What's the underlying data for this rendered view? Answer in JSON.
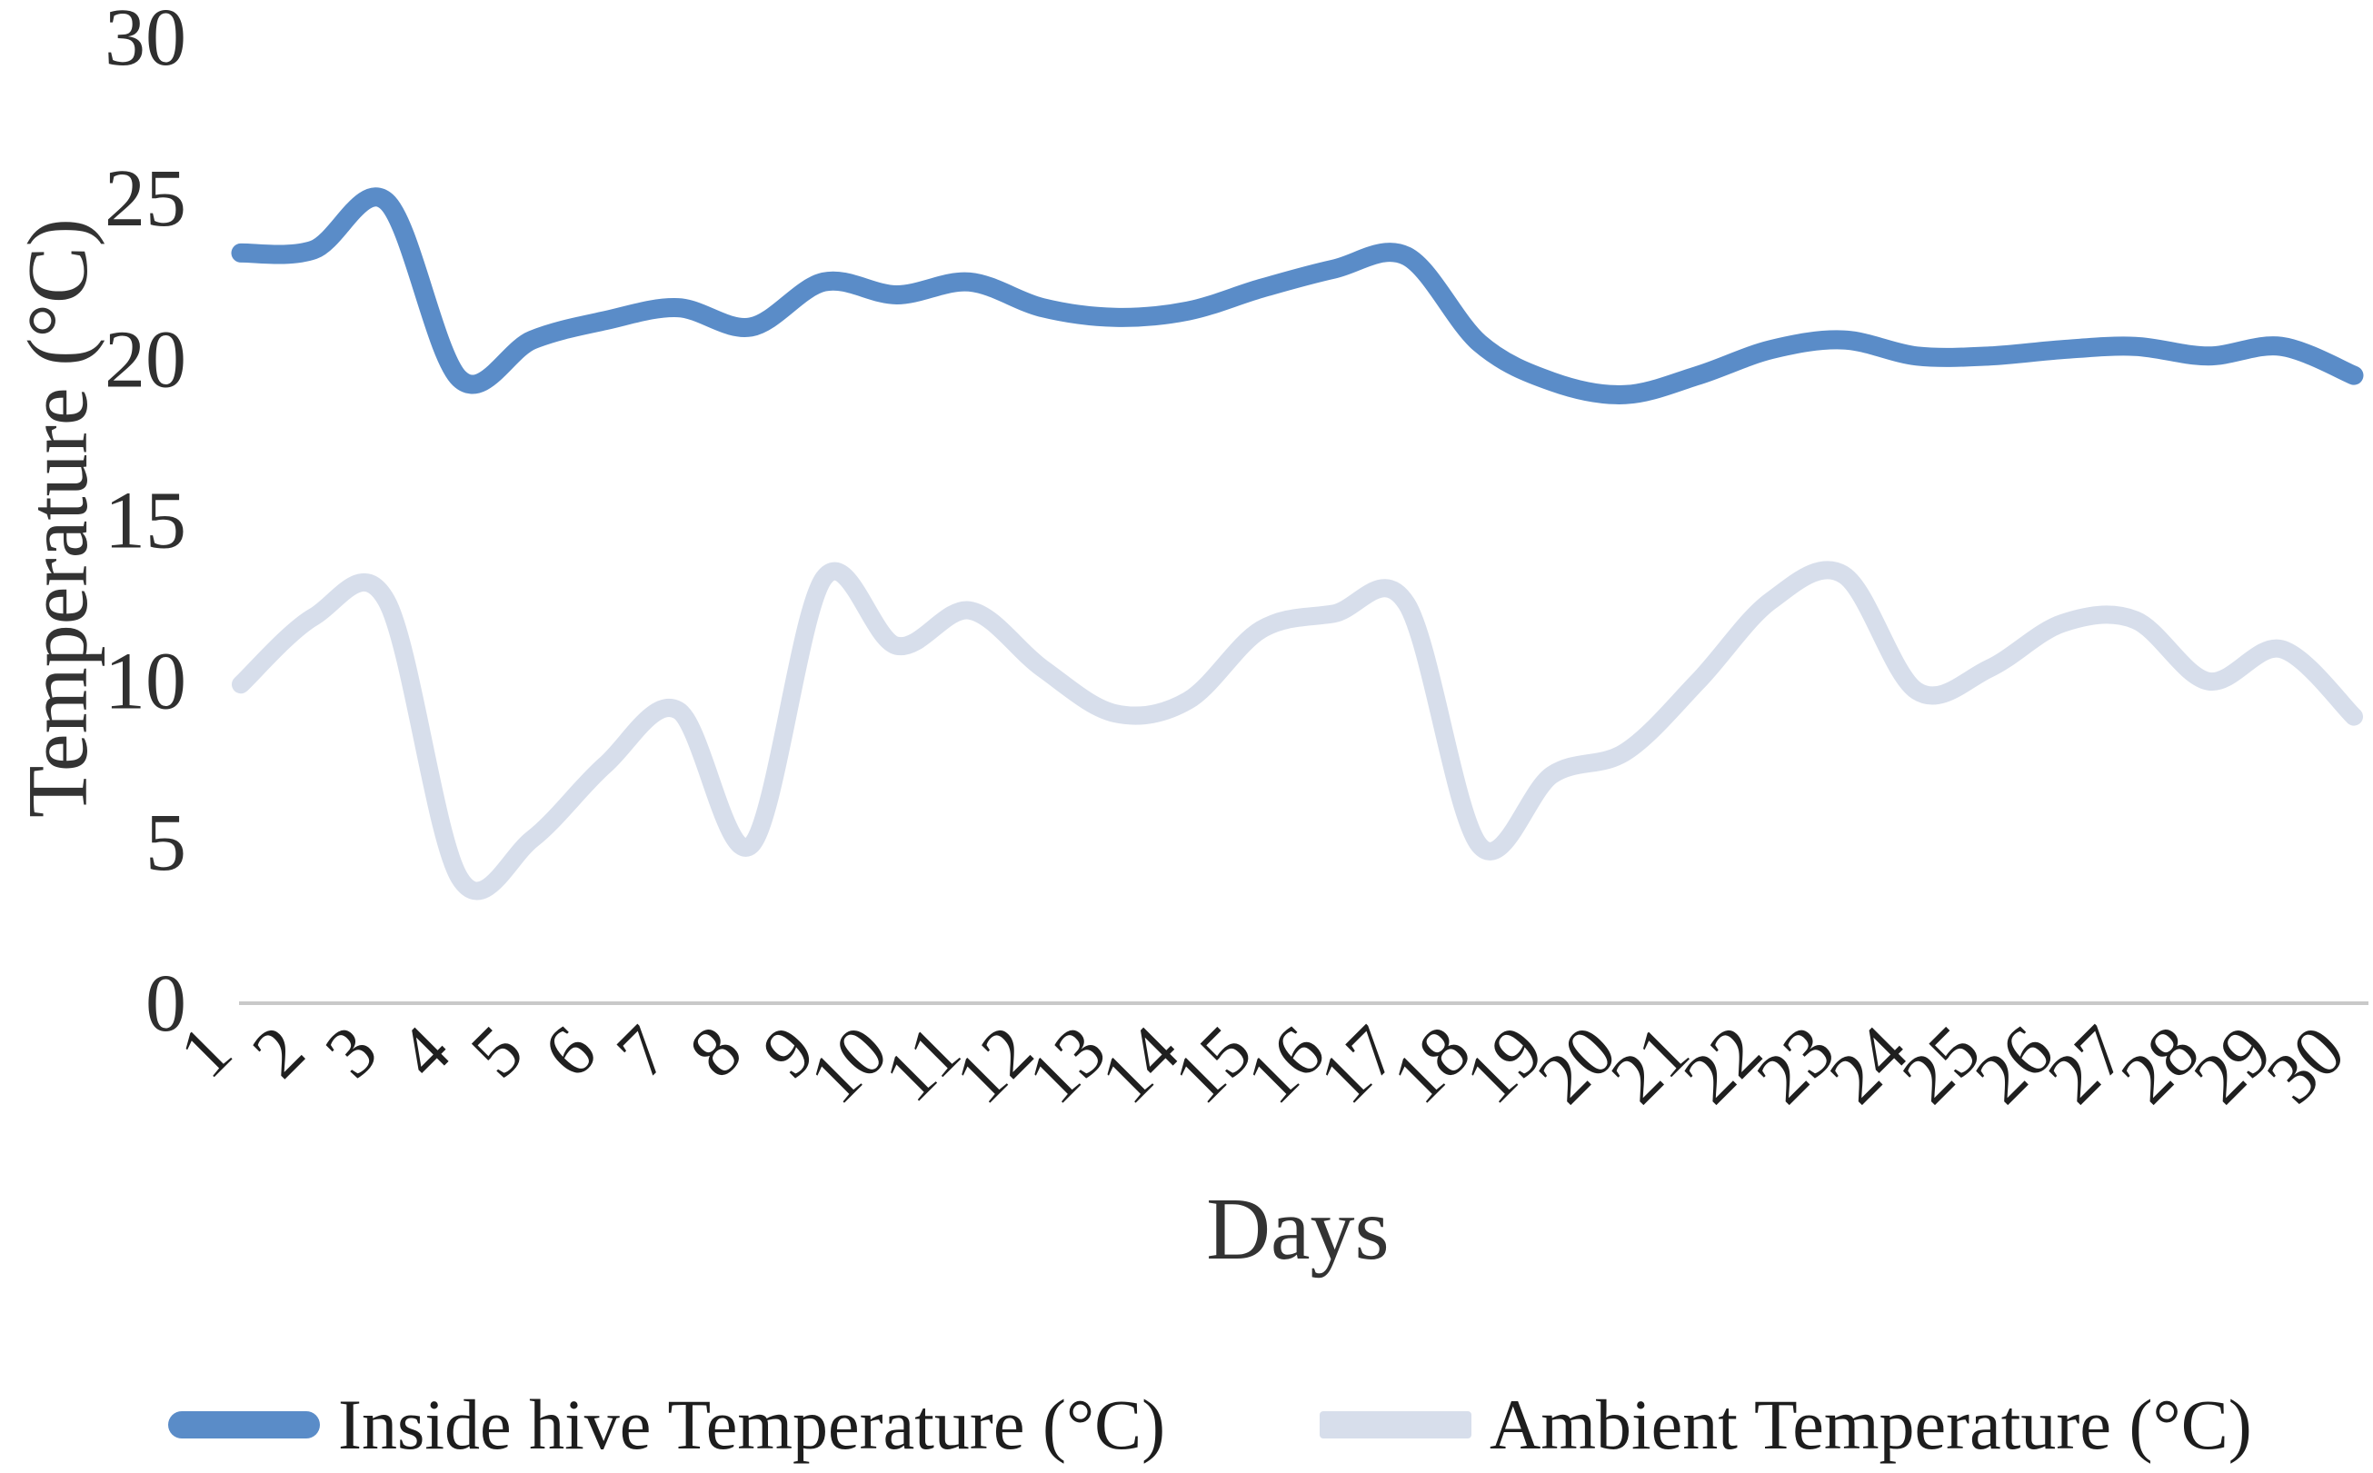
{
  "figure": {
    "background": "#ffffff",
    "axis_line_color": "#c9c9c9"
  },
  "y_axis": {
    "title": "Temperature (°C)",
    "ticks": [
      0,
      5,
      10,
      15,
      20,
      25,
      30
    ],
    "min": 0,
    "max": 30
  },
  "x_axis": {
    "title": "Days",
    "labels": [
      "1",
      "2",
      "3",
      "4",
      "5",
      "6",
      "7",
      "8",
      "9",
      "10",
      "11",
      "12",
      "13",
      "14",
      "15",
      "16",
      "17",
      "18",
      "19",
      "20",
      "21",
      "22",
      "23",
      "24",
      "25",
      "26",
      "27",
      "28",
      "29",
      "30"
    ]
  },
  "legend": [
    {
      "label": "Inside hive Temperature (°C)",
      "color": "#5a8cc8"
    },
    {
      "label": "Ambient Temperature (°C)",
      "color": "#d7deeb"
    }
  ],
  "chart_data": {
    "type": "line",
    "title": "",
    "xlabel": "Days",
    "ylabel": "Temperature (°C)",
    "x": [
      1,
      2,
      3,
      4,
      5,
      6,
      7,
      8,
      9,
      10,
      11,
      12,
      13,
      14,
      15,
      16,
      17,
      18,
      19,
      20,
      21,
      22,
      23,
      24,
      25,
      26,
      27,
      28,
      29,
      30
    ],
    "ylim": [
      0,
      30
    ],
    "grid": false,
    "smoothed": true,
    "legend_position": "bottom",
    "series": [
      {
        "name": "Inside hive Temperature (°C)",
        "color": "#5a8cc8",
        "line_width": 21,
        "values": [
          23.3,
          23.4,
          24.9,
          19.4,
          20.6,
          21.2,
          21.6,
          21.0,
          22.4,
          22.0,
          22.4,
          21.6,
          21.3,
          21.5,
          22.2,
          22.8,
          23.2,
          20.5,
          19.3,
          18.9,
          19.5,
          20.3,
          20.6,
          20.1,
          20.1,
          20.3,
          20.4,
          20.1,
          20.4,
          19.5
        ]
      },
      {
        "name": "Ambient Temperature (°C)",
        "color": "#d7deeb",
        "line_width": 20,
        "values": [
          9.9,
          12.0,
          12.5,
          3.9,
          5.1,
          7.4,
          9.1,
          4.9,
          13.2,
          11.1,
          12.2,
          10.4,
          9.0,
          9.4,
          11.6,
          12.1,
          12.4,
          4.9,
          7.1,
          7.8,
          10.0,
          12.5,
          13.3,
          9.7,
          10.4,
          11.8,
          11.9,
          10.0,
          11.0,
          8.9
        ]
      }
    ]
  }
}
